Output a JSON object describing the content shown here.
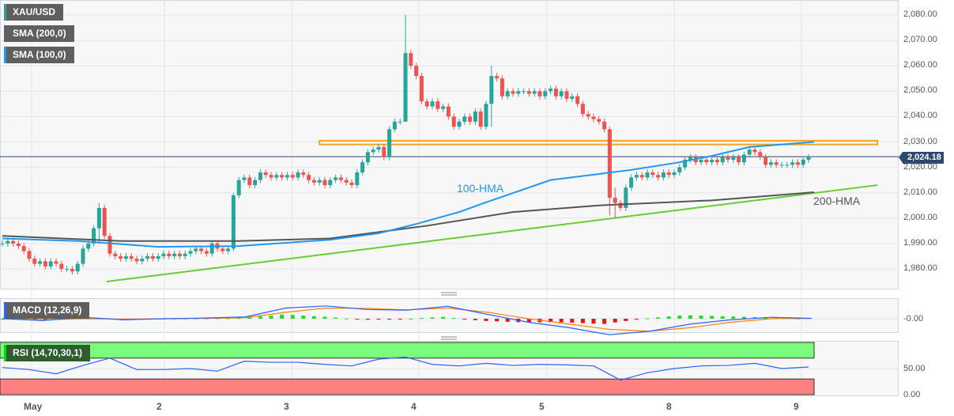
{
  "legend": {
    "symbol": "XAU/USD",
    "sma200": "SMA (200,0)",
    "sma100": "SMA (100,0)",
    "macd": "MACD (12,26,9)",
    "rsi": "RSI (14,70,30,1)"
  },
  "annotations": {
    "hma100": "100-HMA",
    "hma200": "200-HMA"
  },
  "current_price": "2,024.18",
  "price_axis": [
    "2,080.00",
    "2,070.00",
    "2,060.00",
    "2,050.00",
    "2,040.00",
    "2,030.00",
    "2,020.00",
    "2,010.00",
    "2,000.00",
    "1,990.00",
    "1,980.00"
  ],
  "macd_axis": "-0.00",
  "rsi_axis": [
    "50.00",
    "0.00"
  ],
  "x_axis": [
    "May",
    "2",
    "3",
    "4",
    "5",
    "8",
    "9"
  ],
  "colors": {
    "up": "#26a69a",
    "down": "#ef5350",
    "hma100": "#2196f3",
    "hma200": "#555555",
    "trend": "#66cc33",
    "zone": "#f5a623",
    "price_line": "#2d4a6e",
    "overbought": "#7cfc7c",
    "oversold": "#ff8080"
  },
  "chart_data": {
    "type": "candlestick",
    "ylim": [
      1975,
      2082
    ],
    "current": 2024.18,
    "closes": [
      1990,
      1991,
      1990,
      1989,
      1987,
      1984,
      1982,
      1983,
      1981,
      1983,
      1982,
      1980,
      1980,
      1979,
      1982,
      1988,
      1990,
      1996,
      2004,
      1993,
      1986,
      1985,
      1984,
      1985,
      1984,
      1983,
      1984,
      1985,
      1984,
      1985,
      1986,
      1985,
      1986,
      1985,
      1986,
      1987,
      1988,
      1987,
      1986,
      1990,
      1988,
      1987,
      1988,
      2009,
      2015,
      2016,
      2013,
      2015,
      2018,
      2017,
      2016,
      2017,
      2016,
      2017,
      2016,
      2018,
      2017,
      2015,
      2014,
      2015,
      2013,
      2015,
      2016,
      2015,
      2014,
      2013,
      2018,
      2022,
      2026,
      2027,
      2028,
      2024,
      2035,
      2038,
      2038,
      2065,
      2060,
      2056,
      2046,
      2044,
      2046,
      2043,
      2044,
      2040,
      2036,
      2038,
      2040,
      2038,
      2042,
      2036,
      2045,
      2056,
      2055,
      2048,
      2050,
      2049,
      2050,
      2050,
      2049,
      2050,
      2048,
      2050,
      2051,
      2048,
      2050,
      2047,
      2048,
      2045,
      2041,
      2040,
      2039,
      2038,
      2035,
      2008,
      2006,
      2004,
      2012,
      2016,
      2017,
      2016,
      2018,
      2017,
      2016,
      2018,
      2017,
      2018,
      2020,
      2023,
      2024,
      2022,
      2023,
      2022,
      2023,
      2022,
      2024,
      2023,
      2024,
      2022,
      2025,
      2027,
      2026,
      2024,
      2021,
      2022,
      2021,
      2021,
      2021,
      2022,
      2021,
      2023,
      2024
    ],
    "extremes": {
      "18": [
        2006,
        1990
      ],
      "43": [
        2010,
        1987
      ],
      "75": [
        2080,
        2038
      ],
      "91": [
        2060,
        2036
      ],
      "113": [
        2036,
        2001
      ],
      "114": [
        2012,
        2000
      ]
    },
    "hma100": [
      [
        0,
        1992
      ],
      [
        14,
        1991
      ],
      [
        29,
        1988.7
      ],
      [
        44,
        1989
      ],
      [
        61,
        1991.5
      ],
      [
        70,
        1994
      ],
      [
        77,
        1997.7
      ],
      [
        85,
        2002.4
      ],
      [
        89,
        2005.5
      ],
      [
        102,
        2015
      ],
      [
        111,
        2017.4
      ],
      [
        117,
        2019
      ],
      [
        126,
        2022
      ],
      [
        132,
        2024.5
      ],
      [
        139,
        2028
      ],
      [
        151,
        2030
      ]
    ],
    "hma200": [
      [
        0,
        1993
      ],
      [
        22,
        1991
      ],
      [
        44,
        1991
      ],
      [
        61,
        1992
      ],
      [
        79,
        1997
      ],
      [
        95,
        2002.4
      ],
      [
        111,
        2005
      ],
      [
        132,
        2007
      ],
      [
        151,
        2010.2
      ]
    ],
    "trendline": [
      [
        19.4,
        1975
      ],
      [
        162.8,
        2013
      ]
    ],
    "resistance_zone": [
      2029,
      2030.5
    ],
    "resistance_zone_range": [
      59,
      162.8
    ],
    "macd": {
      "line": [
        0,
        -0.5,
        0.4,
        -0.3,
        0,
        0.2,
        0.5,
        3,
        3.6,
        2.6,
        2.4,
        3.5,
        1.2,
        -1,
        -2.5,
        -4.5,
        -3.5,
        -1.5,
        -0.3,
        0.4,
        0.1
      ],
      "signal": [
        0,
        -0.3,
        0,
        -0.1,
        0,
        0.1,
        0.3,
        1.8,
        3,
        2.9,
        2.5,
        3,
        1.8,
        0,
        -1.5,
        -3,
        -3.5,
        -2.5,
        -1,
        0,
        0.1
      ]
    },
    "rsi": [
      52,
      48,
      40,
      56,
      70,
      48,
      48,
      50,
      45,
      64,
      62,
      62,
      58,
      55,
      68,
      72,
      58,
      55,
      60,
      56,
      58,
      57,
      55,
      28,
      42,
      50,
      55,
      56,
      60,
      50,
      53
    ]
  }
}
